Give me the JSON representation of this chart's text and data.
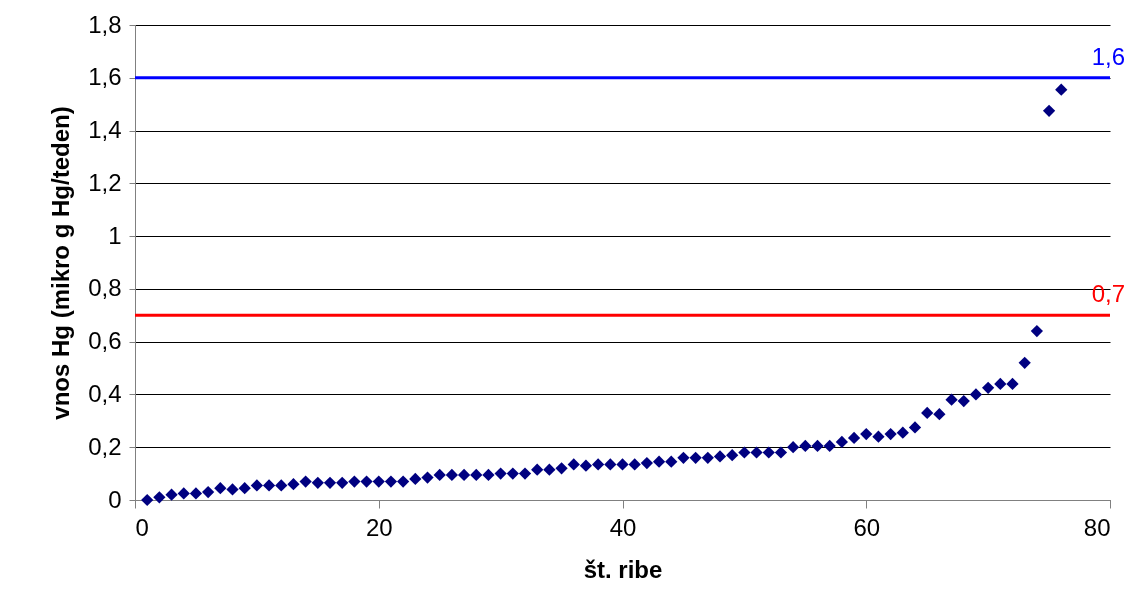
{
  "chart_data": {
    "type": "scatter",
    "xlabel": "št. ribe",
    "ylabel": "vnos Hg (mikro g Hg/teden)",
    "x": [
      1,
      2,
      3,
      4,
      5,
      6,
      7,
      8,
      9,
      10,
      11,
      12,
      13,
      14,
      15,
      16,
      17,
      18,
      19,
      20,
      21,
      22,
      23,
      24,
      25,
      26,
      27,
      28,
      29,
      30,
      31,
      32,
      33,
      34,
      35,
      36,
      37,
      38,
      39,
      40,
      41,
      42,
      43,
      44,
      45,
      46,
      47,
      48,
      49,
      50,
      51,
      52,
      53,
      54,
      55,
      56,
      57,
      58,
      59,
      60,
      61,
      62,
      63,
      64,
      65,
      66,
      67,
      68,
      69,
      70,
      71,
      72,
      73,
      74,
      75,
      76
    ],
    "series": [
      {
        "color": "#000080",
        "values": [
          0.0,
          0.01,
          0.02,
          0.025,
          0.025,
          0.03,
          0.045,
          0.04,
          0.045,
          0.055,
          0.055,
          0.055,
          0.06,
          0.07,
          0.065,
          0.065,
          0.065,
          0.07,
          0.07,
          0.07,
          0.07,
          0.07,
          0.08,
          0.085,
          0.095,
          0.095,
          0.095,
          0.095,
          0.095,
          0.1,
          0.1,
          0.1,
          0.115,
          0.115,
          0.12,
          0.135,
          0.13,
          0.135,
          0.135,
          0.135,
          0.135,
          0.14,
          0.145,
          0.145,
          0.16,
          0.16,
          0.16,
          0.165,
          0.17,
          0.18,
          0.18,
          0.18,
          0.18,
          0.2,
          0.205,
          0.205,
          0.205,
          0.22,
          0.235,
          0.25,
          0.24,
          0.25,
          0.255,
          0.275,
          0.33,
          0.325,
          0.38,
          0.375,
          0.4,
          0.425,
          0.44,
          0.44,
          0.52,
          0.64,
          1.475,
          1.555
        ]
      }
    ],
    "marker": "diamond",
    "grid": "y",
    "legend": false,
    "xlim": [
      0,
      80
    ],
    "xticks": [
      0,
      20,
      40,
      60,
      80
    ],
    "ylim": [
      0,
      1.8
    ],
    "yticks": [
      0,
      {
        "value": 0.2,
        "label": "0,2"
      },
      {
        "value": 0.4,
        "label": "0,4"
      },
      {
        "value": 0.6,
        "label": "0,6"
      },
      {
        "value": 0.8,
        "label": "0,8"
      },
      1,
      {
        "value": 1.2,
        "label": "1,2"
      },
      {
        "value": 1.4,
        "label": "1,4"
      },
      {
        "value": 1.6,
        "label": "1,6"
      },
      {
        "value": 1.8,
        "label": "1,8"
      }
    ],
    "ref_lines": [
      {
        "axis": "y",
        "value": 1.6,
        "label": "1,6",
        "color": "#0000ff"
      },
      {
        "axis": "y",
        "value": 0.7,
        "label": "0,7",
        "color": "#ff0000"
      }
    ]
  }
}
